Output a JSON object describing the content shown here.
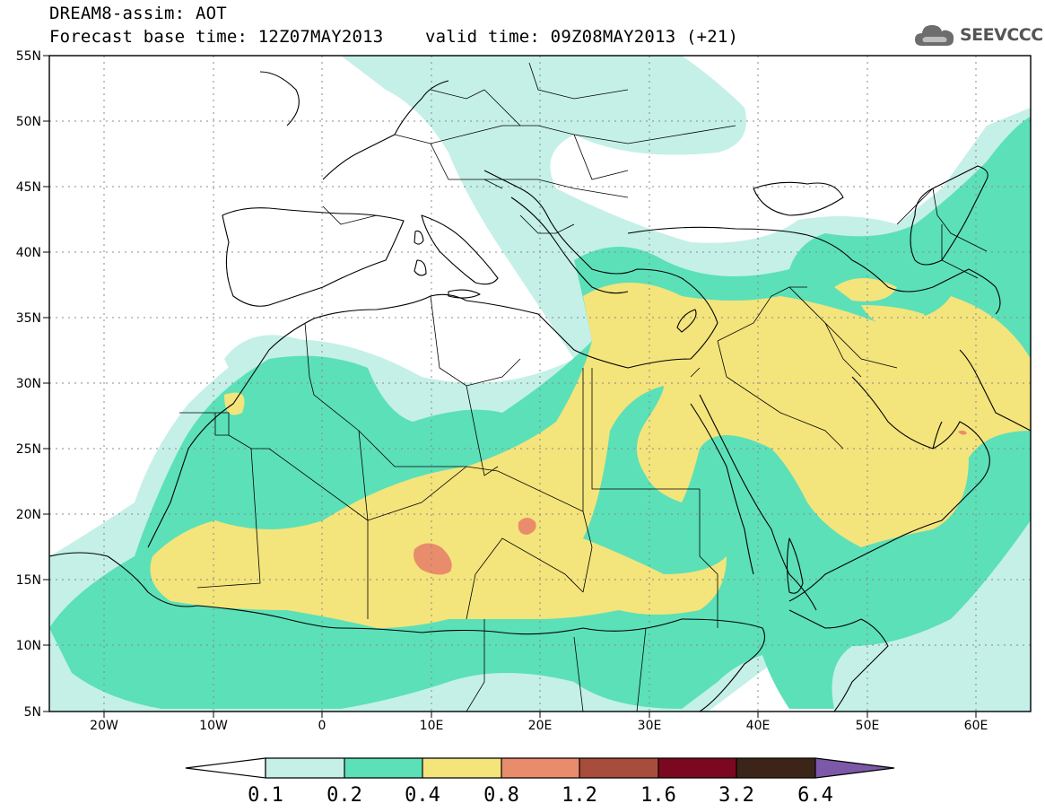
{
  "header": {
    "title": "DREAM8-assim: AOT",
    "base_time": "Forecast base time: 12Z07MAY2013",
    "valid_time": "valid time: 09Z08MAY2013 (+21)"
  },
  "logo": {
    "text": "SEEVCCC",
    "icon": "cloud-icon"
  },
  "map": {
    "lon_range": [
      -25,
      65
    ],
    "lat_range": [
      5,
      55
    ],
    "x_ticks": [
      "20W",
      "10W",
      "0",
      "10E",
      "20E",
      "30E",
      "40E",
      "50E",
      "60E"
    ],
    "y_ticks": [
      "55N",
      "50N",
      "45N",
      "40N",
      "35N",
      "30N",
      "25N",
      "20N",
      "15N",
      "10N",
      "5N"
    ],
    "grid": true
  },
  "colorbar": {
    "labels": [
      "0.1",
      "0.2",
      "0.4",
      "0.8",
      "1.2",
      "1.6",
      "3.2",
      "6.4"
    ],
    "colors": [
      "#c4f0e8",
      "#5ce0b8",
      "#f4e47c",
      "#e88c6c",
      "#a84c3c",
      "#7c0820",
      "#3c2418",
      "#7c58a8"
    ]
  }
}
